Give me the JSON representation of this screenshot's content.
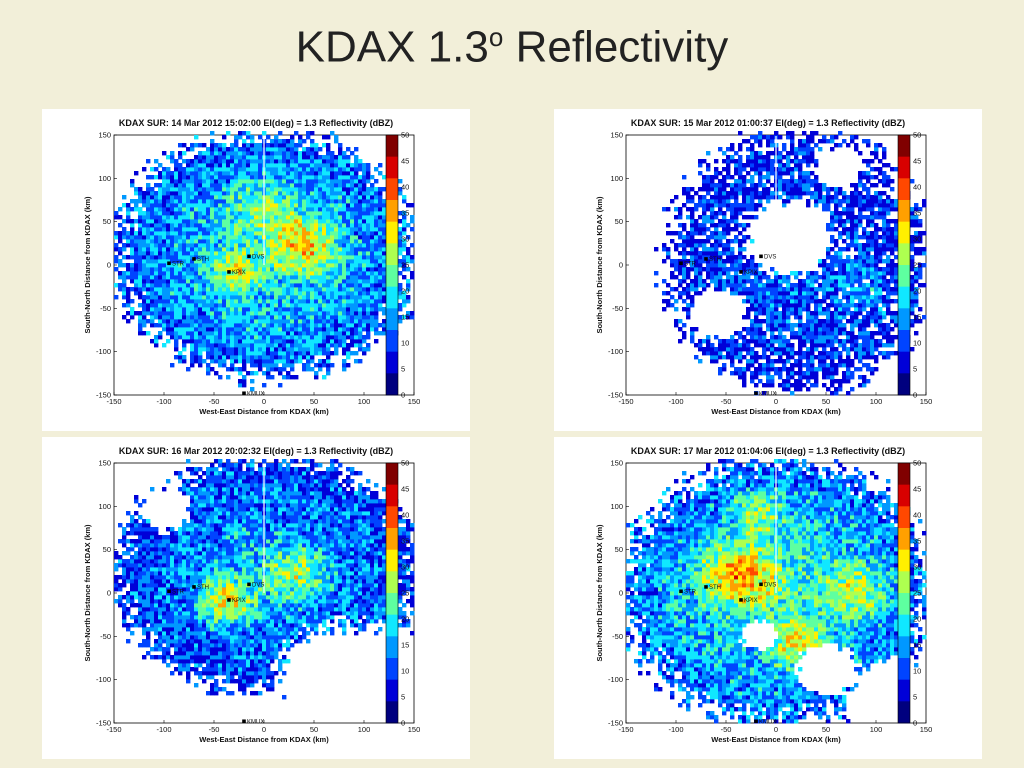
{
  "slide": {
    "title_main": "KDAX 1.3",
    "title_sup": "o",
    "title_rest": " Reflectivity"
  },
  "axes": {
    "xlabel": "West-East Distance from KDAX (km)",
    "ylabel": "South-North Distance from KDAX (km)",
    "xticks": [
      "-150",
      "-100",
      "-50",
      "0",
      "50",
      "100",
      "150"
    ],
    "yticks": [
      "150",
      "100",
      "50",
      "0",
      "-50",
      "-100",
      "-150"
    ],
    "cticks": [
      "50",
      "45",
      "40",
      "35",
      "30",
      "25",
      "20",
      "15",
      "10",
      "5",
      "0"
    ]
  },
  "colors": {
    "background": "#f2efd9",
    "colormap": [
      "#00007f",
      "#0000d8",
      "#0044ff",
      "#0098ff",
      "#10e8ff",
      "#5effa0",
      "#aeff50",
      "#fff000",
      "#ffa000",
      "#ff4800",
      "#d80000",
      "#800000"
    ]
  },
  "panels": [
    {
      "title": "KDAX SUR: 14 Mar 2012 15:02:00  El(deg) = 1.3  Reflectivity (dBZ)",
      "stations": [
        {
          "label": "STR"
        },
        {
          "label": "STH"
        },
        {
          "label": "KPIX"
        },
        {
          "label": "DVS"
        },
        {
          "label": "KMUX"
        }
      ]
    },
    {
      "title": "KDAX SUR: 15 Mar 2012 01:00:37  El(deg) = 1.3  Reflectivity (dBZ)",
      "stations": [
        {
          "label": "STR"
        },
        {
          "label": "STH"
        },
        {
          "label": "KPIX"
        },
        {
          "label": "DVS"
        },
        {
          "label": "KMUX"
        }
      ]
    },
    {
      "title": "KDAX SUR: 16 Mar 2012 20:02:32  El(deg) = 1.3  Reflectivity (dBZ)",
      "stations": [
        {
          "label": "STR"
        },
        {
          "label": "STH"
        },
        {
          "label": "KPIX"
        },
        {
          "label": "DVS"
        },
        {
          "label": "KMUX"
        }
      ]
    },
    {
      "title": "KDAX SUR: 17 Mar 2012 01:04:06  El(deg) = 1.3  Reflectivity (dBZ)",
      "stations": [
        {
          "label": "STR"
        },
        {
          "label": "STH"
        },
        {
          "label": "KPIX"
        },
        {
          "label": "DVS"
        },
        {
          "label": "KMUX"
        }
      ]
    }
  ]
}
